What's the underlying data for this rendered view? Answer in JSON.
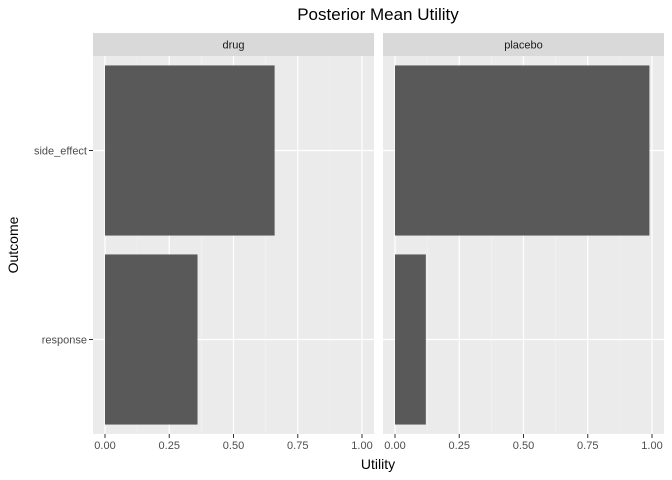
{
  "chart_data": {
    "type": "bar",
    "orientation": "horizontal",
    "title": "Posterior Mean Utility",
    "xlabel": "Utility",
    "ylabel": "Outcome",
    "categories": [
      "side_effect",
      "response"
    ],
    "xlim": [
      0,
      1
    ],
    "x_ticks": [
      "0.00",
      "0.25",
      "0.50",
      "0.75",
      "1.00"
    ],
    "grid": true,
    "facets": [
      {
        "name": "drug",
        "values": [
          0.66,
          0.36
        ]
      },
      {
        "name": "placebo",
        "values": [
          0.99,
          0.12
        ]
      }
    ],
    "colors": {
      "bar": "#595959",
      "panel": "#ebebeb",
      "strip": "#d9d9d9",
      "grid_major": "#ffffff",
      "grid_minor": "#f2f2f2",
      "tick": "#333333"
    }
  }
}
